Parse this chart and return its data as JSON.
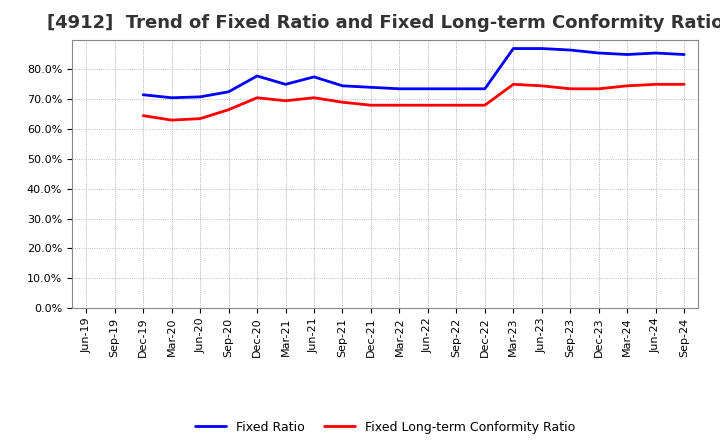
{
  "title": "[4912]  Trend of Fixed Ratio and Fixed Long-term Conformity Ratio",
  "x_labels": [
    "Jun-19",
    "Sep-19",
    "Dec-19",
    "Mar-20",
    "Jun-20",
    "Sep-20",
    "Dec-20",
    "Mar-21",
    "Jun-21",
    "Sep-21",
    "Dec-21",
    "Mar-22",
    "Jun-22",
    "Sep-22",
    "Dec-22",
    "Mar-23",
    "Jun-23",
    "Sep-23",
    "Dec-23",
    "Mar-24",
    "Jun-24",
    "Sep-24"
  ],
  "fixed_ratio": [
    null,
    null,
    71.5,
    70.5,
    70.8,
    72.5,
    77.8,
    75.0,
    77.5,
    74.5,
    74.0,
    73.5,
    73.5,
    73.5,
    73.5,
    87.0,
    87.0,
    86.5,
    85.5,
    85.0,
    85.5,
    85.0
  ],
  "fixed_lt_ratio": [
    null,
    null,
    64.5,
    63.0,
    63.5,
    66.5,
    70.5,
    69.5,
    70.5,
    69.0,
    68.0,
    68.0,
    68.0,
    68.0,
    68.0,
    75.0,
    74.5,
    73.5,
    73.5,
    74.5,
    75.0,
    75.0
  ],
  "blue_color": "#0000FF",
  "red_color": "#FF0000",
  "ylim": [
    0,
    90
  ],
  "yticks": [
    0,
    10,
    20,
    30,
    40,
    50,
    60,
    70,
    80
  ],
  "bg_color": "#FFFFFF",
  "plot_bg_color": "#FFFFFF",
  "grid_color": "#AAAAAA",
  "dot_color": "#CCCCCC",
  "title_fontsize": 13,
  "tick_fontsize": 8,
  "legend_labels": [
    "Fixed Ratio",
    "Fixed Long-term Conformity Ratio"
  ]
}
